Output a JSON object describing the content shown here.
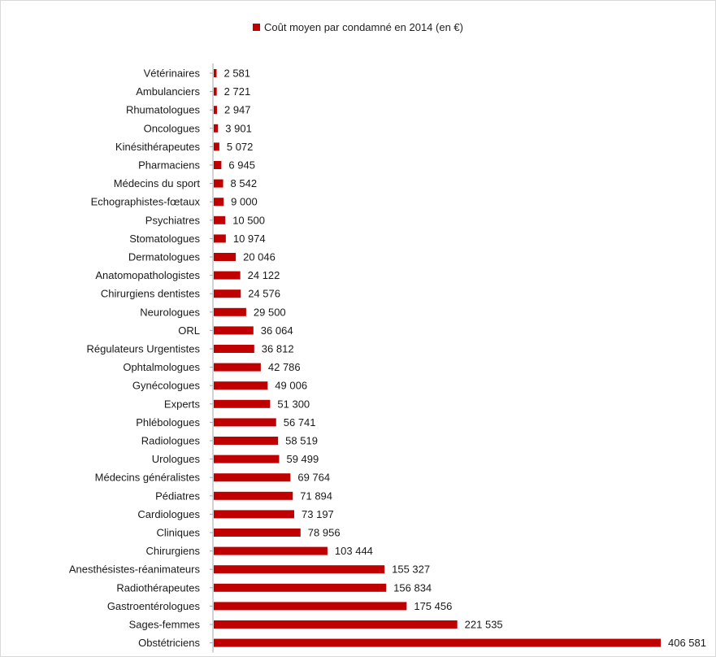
{
  "chart_data": {
    "type": "bar",
    "orientation": "horizontal",
    "legend_position": "top-center",
    "grid": false,
    "color": "#c00000",
    "series": [
      {
        "name": "Coût moyen par condamné en 2014 (en €)",
        "categories": [
          "Vétérinaires",
          "Ambulanciers",
          "Rhumatologues",
          "Oncologues",
          "Kinésithérapeutes",
          "Pharmaciens",
          "Médecins du sport",
          "Echographistes-fœtaux",
          "Psychiatres",
          "Stomatologues",
          "Dermatologues",
          "Anatomopathologistes",
          "Chirurgiens dentistes",
          "Neurologues",
          "ORL",
          "Régulateurs Urgentistes",
          "Ophtalmologues",
          "Gynécologues",
          "Experts",
          "Phlébologues",
          "Radiologues",
          "Urologues",
          "Médecins généralistes",
          "Pédiatres",
          "Cardiologues",
          "Cliniques",
          "Chirurgiens",
          "Anesthésistes-réanimateurs",
          "Radiothérapeutes",
          "Gastroentérologues",
          "Sages-femmes",
          "Obstétriciens"
        ],
        "values": [
          2581,
          2721,
          2947,
          3901,
          5072,
          6945,
          8542,
          9000,
          10500,
          10974,
          20046,
          24122,
          24576,
          29500,
          36064,
          36812,
          42786,
          49006,
          51300,
          56741,
          58519,
          59499,
          69764,
          71894,
          73197,
          78956,
          103444,
          155327,
          156834,
          175456,
          221535,
          406581
        ],
        "value_labels": [
          "2 581",
          "2 721",
          "2 947",
          "3 901",
          "5 072",
          "6 945",
          "8 542",
          "9 000",
          "10 500",
          "10 974",
          "20 046",
          "24 122",
          "24 576",
          "29 500",
          "36 064",
          "36 812",
          "42 786",
          "49 006",
          "51 300",
          "56 741",
          "58 519",
          "59 499",
          "69 764",
          "71 894",
          "73 197",
          "78 956",
          "103 444",
          "155 327",
          "156 834",
          "175 456",
          "221 535",
          "406 581"
        ]
      }
    ]
  }
}
